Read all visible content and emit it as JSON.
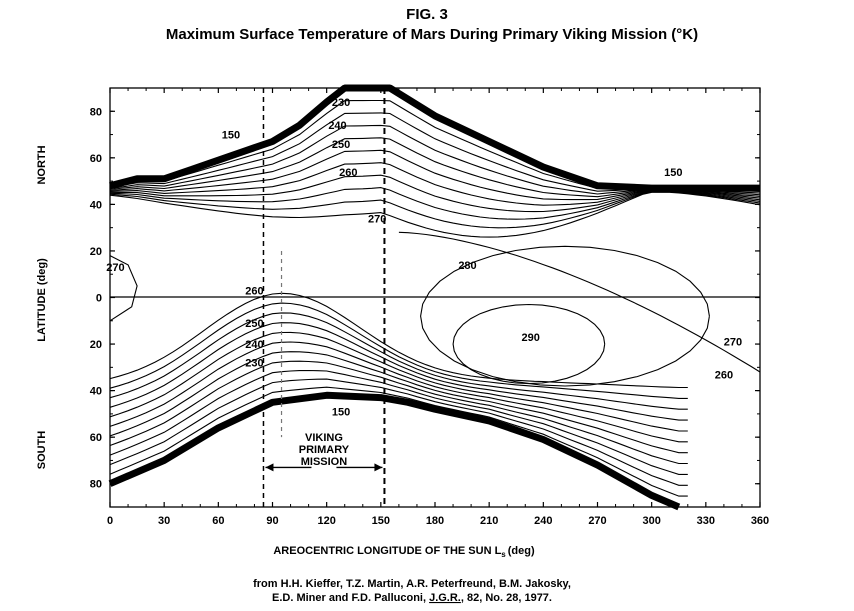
{
  "chart_data": {
    "type": "contour",
    "fig_label": "FIG. 3",
    "title": "Maximum Surface Temperature of Mars During Primary Viking Mission (°K)",
    "xlabel_main": "AREOCENTRIC LONGITUDE OF THE SUN L",
    "xlabel_sub": "s",
    "xlabel_unit": "(deg)",
    "ylabel": "LATITUDE (deg)",
    "north_label": "NORTH",
    "south_label": "SOUTH",
    "xlim": [
      0,
      360
    ],
    "ylim": [
      -90,
      90
    ],
    "x_ticks": [
      "0",
      "30",
      "60",
      "90",
      "120",
      "150",
      "180",
      "210",
      "240",
      "270",
      "300",
      "330",
      "360"
    ],
    "y_ticks": [
      {
        "value": 80,
        "label": "80"
      },
      {
        "value": 60,
        "label": "60"
      },
      {
        "value": 40,
        "label": "40"
      },
      {
        "value": 20,
        "label": "20"
      },
      {
        "value": 0,
        "label": "0"
      },
      {
        "value": -20,
        "label": "20"
      },
      {
        "value": -40,
        "label": "40"
      },
      {
        "value": -60,
        "label": "60"
      },
      {
        "value": -80,
        "label": "80"
      }
    ],
    "mission_window": {
      "ls_start": 85,
      "ls_end": 152
    },
    "mission_label": [
      "VIKING",
      "PRIMARY",
      "MISSION"
    ],
    "polar_cap_north": [
      [
        0,
        48
      ],
      [
        15,
        51
      ],
      [
        30,
        51
      ],
      [
        45,
        55
      ],
      [
        60,
        59
      ],
      [
        75,
        63
      ],
      [
        90,
        67
      ],
      [
        105,
        74
      ],
      [
        120,
        84
      ],
      [
        130,
        90
      ],
      [
        155,
        90
      ],
      [
        180,
        78
      ],
      [
        210,
        67
      ],
      [
        240,
        56
      ],
      [
        270,
        48
      ],
      [
        300,
        47
      ],
      [
        330,
        47
      ],
      [
        360,
        47
      ]
    ],
    "polar_cap_south": [
      [
        0,
        -80
      ],
      [
        30,
        -70
      ],
      [
        60,
        -56
      ],
      [
        90,
        -45
      ],
      [
        120,
        -42
      ],
      [
        150,
        -43
      ],
      [
        165,
        -45
      ],
      [
        180,
        -48
      ],
      [
        210,
        -53
      ],
      [
        240,
        -61
      ],
      [
        270,
        -72
      ],
      [
        300,
        -85
      ],
      [
        315,
        -90
      ]
    ],
    "contour_labels": [
      {
        "text": "230",
        "ls": 128,
        "lat": 84
      },
      {
        "text": "240",
        "ls": 126,
        "lat": 74
      },
      {
        "text": "250",
        "ls": 128,
        "lat": 66
      },
      {
        "text": "260",
        "ls": 132,
        "lat": 54
      },
      {
        "text": "270",
        "ls": 148,
        "lat": 34
      },
      {
        "text": "270",
        "ls": 3,
        "lat": 13
      },
      {
        "text": "280",
        "ls": 198,
        "lat": 14
      },
      {
        "text": "290",
        "ls": 233,
        "lat": -17
      },
      {
        "text": "270",
        "ls": 345,
        "lat": -19
      },
      {
        "text": "260",
        "ls": 340,
        "lat": -33
      },
      {
        "text": "260",
        "ls": 80,
        "lat": 3
      },
      {
        "text": "250",
        "ls": 80,
        "lat": -11
      },
      {
        "text": "240",
        "ls": 80,
        "lat": -20
      },
      {
        "text": "230",
        "ls": 80,
        "lat": -28
      },
      {
        "text": "150",
        "ls": 67,
        "lat": 70
      },
      {
        "text": "150",
        "ls": 312,
        "lat": 54
      },
      {
        "text": "150",
        "ls": 128,
        "lat": -49
      }
    ],
    "citation_1": "from H.H. Kieffer, T.Z. Martin, A.R. Peterfreund, B.M. Jakosky,",
    "citation_2a": "E.D. Miner and F.D. Palluconi, ",
    "citation_2b": "J.G.R.",
    "citation_2c": ", 82, No. 28, 1977."
  }
}
